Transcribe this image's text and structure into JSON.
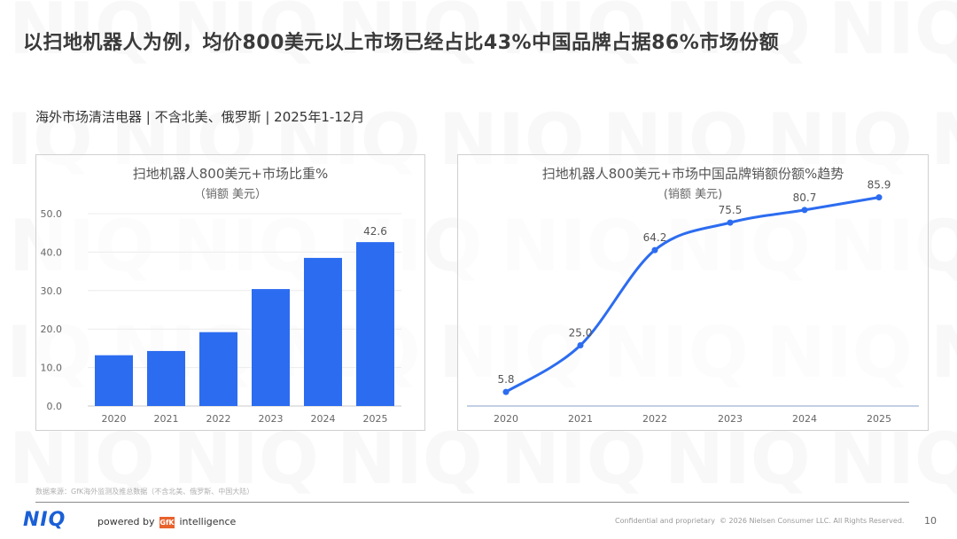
{
  "page": {
    "title": "以扫地机器人为例，均价800美元以上市场已经占比43%中国品牌占据86%市场份额",
    "subtitle": "海外市场清洁电器 | 不含北美、俄罗斯 | 2025年1-12月",
    "watermark_text": "NIQ",
    "accent_color": "#2c6cf0"
  },
  "chart_data": [
    {
      "type": "bar",
      "title": "扫地机器人800美元+市场比重%",
      "subtitle": "（销额 美元）",
      "categories": [
        "2020",
        "2021",
        "2022",
        "2023",
        "2024",
        "2025"
      ],
      "values": [
        13.2,
        14.3,
        19.2,
        30.4,
        38.5,
        42.6
      ],
      "data_labels": [
        "",
        "",
        "",
        "",
        "",
        "42.6"
      ],
      "y_ticks": [
        "0.0",
        "10.0",
        "20.0",
        "30.0",
        "40.0",
        "50.0"
      ],
      "ylim": [
        0,
        50
      ],
      "grid": true,
      "color": "#2c6cf0"
    },
    {
      "type": "line",
      "title": "扫地机器人800美元+市场中国品牌销额份额%趋势",
      "subtitle": "(销额 美元)",
      "categories": [
        "2020",
        "2021",
        "2022",
        "2023",
        "2024",
        "2025"
      ],
      "values": [
        5.8,
        25.0,
        64.2,
        75.5,
        80.7,
        85.9
      ],
      "data_labels": [
        "5.8",
        "25.0",
        "64.2",
        "75.5",
        "80.7",
        "85.9"
      ],
      "ylim": [
        0,
        100
      ],
      "grid": false,
      "color": "#2c6cf0"
    }
  ],
  "footer": {
    "source": "数据来源：GfK海外监测及推总数据（不含北美、俄罗斯、中国大陆）",
    "logo": "NIQ",
    "powered_by": "powered by",
    "gfk_badge": "GfK",
    "intelligence": "intelligence",
    "confidential": "Confidential and proprietary",
    "copyright": "© 2026 Nielsen Consumer LLC. All Rights Reserved.",
    "page_number": "10"
  }
}
